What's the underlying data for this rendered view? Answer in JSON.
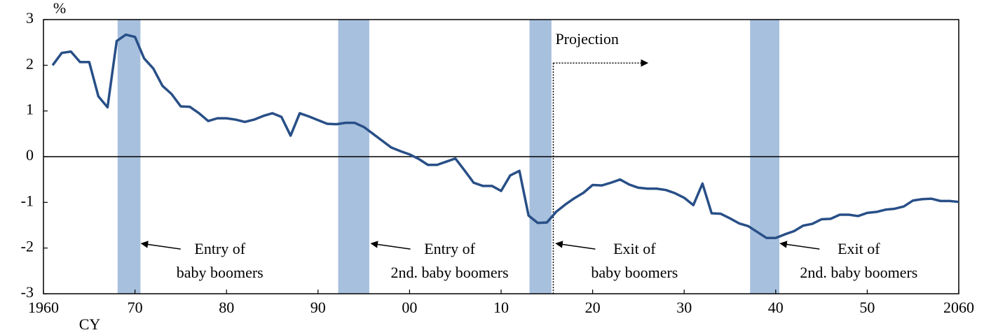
{
  "chart_data": {
    "type": "line",
    "y_unit": "%",
    "x_unit": "CY",
    "x": [
      1961,
      1962,
      1963,
      1964,
      1965,
      1966,
      1967,
      1968,
      1969,
      1970,
      1971,
      1972,
      1973,
      1974,
      1975,
      1976,
      1977,
      1978,
      1979,
      1980,
      1981,
      1982,
      1983,
      1984,
      1985,
      1986,
      1987,
      1988,
      1989,
      1990,
      1991,
      1992,
      1993,
      1994,
      1995,
      1996,
      1997,
      1998,
      1999,
      2000,
      2001,
      2002,
      2003,
      2004,
      2005,
      2006,
      2007,
      2008,
      2009,
      2010,
      2011,
      2012,
      2013,
      2014,
      2015,
      2016,
      2017,
      2018,
      2019,
      2020,
      2021,
      2022,
      2023,
      2024,
      2025,
      2026,
      2027,
      2028,
      2029,
      2030,
      2031,
      2032,
      2033,
      2034,
      2035,
      2036,
      2037,
      2038,
      2039,
      2040,
      2041,
      2042,
      2043,
      2044,
      2045,
      2046,
      2047,
      2048,
      2049,
      2050,
      2051,
      2052,
      2053,
      2054,
      2055,
      2056,
      2057,
      2058,
      2059,
      2060
    ],
    "series": [
      {
        "color": "#284f87",
        "values": [
          2.0,
          2.27,
          2.3,
          2.07,
          2.07,
          1.32,
          1.08,
          2.53,
          2.67,
          2.62,
          2.15,
          1.93,
          1.55,
          1.37,
          1.1,
          1.09,
          0.95,
          0.78,
          0.84,
          0.84,
          0.81,
          0.76,
          0.81,
          0.89,
          0.95,
          0.87,
          0.46,
          0.95,
          0.88,
          0.8,
          0.72,
          0.71,
          0.74,
          0.74,
          0.65,
          0.5,
          0.35,
          0.2,
          0.12,
          0.05,
          -0.05,
          -0.18,
          -0.18,
          -0.11,
          -0.04,
          -0.3,
          -0.57,
          -0.64,
          -0.64,
          -0.75,
          -0.41,
          -0.31,
          -1.29,
          -1.45,
          -1.44,
          -1.21,
          -1.05,
          -0.91,
          -0.79,
          -0.62,
          -0.63,
          -0.57,
          -0.5,
          -0.61,
          -0.68,
          -0.7,
          -0.7,
          -0.73,
          -0.8,
          -0.9,
          -1.06,
          -0.59,
          -1.24,
          -1.25,
          -1.35,
          -1.46,
          -1.52,
          -1.65,
          -1.78,
          -1.78,
          -1.7,
          -1.63,
          -1.51,
          -1.47,
          -1.37,
          -1.36,
          -1.27,
          -1.27,
          -1.3,
          -1.23,
          -1.21,
          -1.16,
          -1.14,
          -1.09,
          -0.96,
          -0.93,
          -0.92,
          -0.97,
          -0.97,
          -0.99
        ]
      }
    ],
    "xlim": [
      1960,
      2060
    ],
    "ylim": [
      -3,
      3
    ],
    "yticks": [
      -3,
      -2,
      -1,
      0,
      1,
      2,
      3
    ],
    "xticks": [
      1960,
      {
        "value": 1970,
        "label": "70"
      },
      {
        "value": 1980,
        "label": "80"
      },
      {
        "value": 1990,
        "label": "90"
      },
      {
        "value": 2000,
        "label": "00"
      },
      {
        "value": 2010,
        "label": "10"
      },
      {
        "value": 2020,
        "label": "20"
      },
      {
        "value": 2030,
        "label": "30"
      },
      {
        "value": 2040,
        "label": "40"
      },
      {
        "value": 2050,
        "label": "50"
      },
      2060
    ],
    "bands": {
      "color": "#a7c0de",
      "ranges": [
        [
          1968.1,
          1970.6
        ],
        [
          1992.2,
          1995.6
        ],
        [
          2013.1,
          2015.5
        ],
        [
          2037.2,
          2040.4
        ]
      ]
    },
    "projection": {
      "text": "Projection",
      "x": 2015.7,
      "to": 2026,
      "y": 2.05
    },
    "annotations": [
      {
        "x": 1970.7,
        "y": -1.9,
        "lines": [
          "Entry of",
          "baby boomers"
        ]
      },
      {
        "x": 1995.8,
        "y": -1.9,
        "lines": [
          "Entry of",
          "2nd. baby boomers"
        ]
      },
      {
        "x": 2016.0,
        "y": -1.9,
        "lines": [
          "Exit of",
          "baby boomers"
        ]
      },
      {
        "x": 2040.5,
        "y": -1.9,
        "lines": [
          "Exit of",
          "2nd. baby boomers"
        ]
      }
    ]
  }
}
